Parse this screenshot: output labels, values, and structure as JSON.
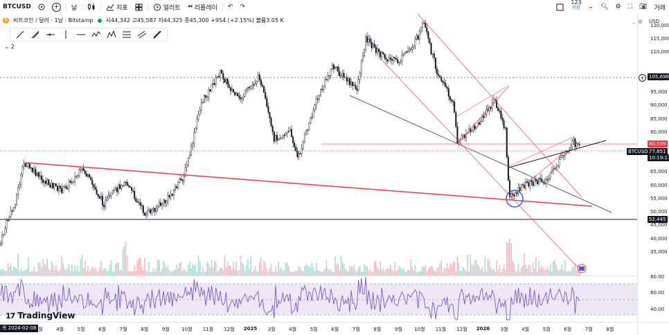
{
  "toolbar": {
    "ticker": "BTCUSD",
    "interval": "날",
    "indicators_label": "지표",
    "alert_label": "얼러트",
    "replay_label": "리플레이",
    "layout_top": "123",
    "layout_bottom": "저장",
    "trade_label": "거래"
  },
  "info": {
    "symbol_line": "비트코인 / 달러 · 1날 · Bitstamp",
    "ohlc": "시44,342 고45,587 저44,325 종45,300 +954 (+2.15%) 볼륨3.05 K",
    "collapsed_count": "2",
    "currency": "USD"
  },
  "colors": {
    "up": "#089981",
    "down": "#f23645",
    "current_price_bg": "#131722",
    "rsi_line": "#7e57c2",
    "rsi_band": "#ede7f6"
  },
  "price_axis": {
    "ticks": [
      "120,000",
      "115,000",
      "110,000",
      "100,000",
      "95,000",
      "90,000",
      "85,000",
      "80,000",
      "75,000",
      "70,000",
      "65,000",
      "60,000",
      "55,000",
      "50,000",
      "45,000",
      "40,000",
      "35,000"
    ],
    "labels": {
      "hline": "105,696",
      "resistance": "80,599",
      "symbol": "BTCUSD",
      "current": "77,851",
      "countdown": "10:19:11",
      "support": "52,445"
    }
  },
  "rsi_axis": {
    "ticks": [
      "80.00",
      "60.00",
      "40.00"
    ]
  },
  "time_axis": {
    "date_box": "목 2024-02-08",
    "ticks": [
      "3월",
      "4월",
      "5월",
      "6월",
      "7월",
      "8월",
      "9월",
      "10월",
      "11월",
      "12월",
      "2025",
      "3월",
      "4월",
      "5월",
      "6월",
      "7월",
      "8월",
      "9월",
      "10월",
      "11월",
      "12월",
      "2026",
      "3월",
      "4월",
      "5월",
      "6월",
      "7월",
      "8월"
    ]
  },
  "logo": "TradingView",
  "icons": {
    "add": "plus-circle-icon",
    "indicators": "chart-bars-icon",
    "templates": "grid-icon",
    "alert": "alarm-clock-icon",
    "replay": "rewind-icon",
    "undo": "undo-icon",
    "redo": "redo-icon"
  }
}
